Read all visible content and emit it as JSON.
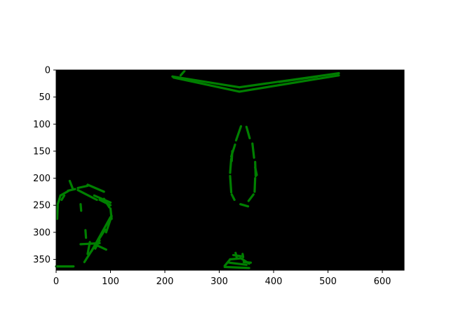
{
  "chart_data": {
    "type": "image",
    "title": "",
    "xlabel": "",
    "ylabel": "",
    "xlim": [
      0,
      640
    ],
    "ylim": [
      370,
      0
    ],
    "y_inverted": true,
    "background_color": "#000000",
    "line_color": "#007f00",
    "grid": false,
    "legend": "none",
    "x_ticks": [
      {
        "value": 0,
        "label": "0"
      },
      {
        "value": 100,
        "label": "100"
      },
      {
        "value": 200,
        "label": "200"
      },
      {
        "value": 300,
        "label": "300"
      },
      {
        "value": 400,
        "label": "400"
      },
      {
        "value": 500,
        "label": "500"
      },
      {
        "value": 600,
        "label": "600"
      }
    ],
    "y_ticks": [
      {
        "value": 0,
        "label": "0"
      },
      {
        "value": 50,
        "label": "50"
      },
      {
        "value": 100,
        "label": "100"
      },
      {
        "value": 150,
        "label": "150"
      },
      {
        "value": 200,
        "label": "200"
      },
      {
        "value": 250,
        "label": "250"
      },
      {
        "value": 300,
        "label": "300"
      },
      {
        "value": 350,
        "label": "350"
      }
    ],
    "segments": [
      {
        "id": "top-v-upper-left",
        "points": [
          [
            214,
            12
          ],
          [
            337,
            32
          ]
        ]
      },
      {
        "id": "top-v-lower-left",
        "points": [
          [
            216,
            14
          ],
          [
            337,
            40
          ]
        ]
      },
      {
        "id": "top-v-upper-right",
        "points": [
          [
            337,
            32
          ],
          [
            520,
            6
          ]
        ]
      },
      {
        "id": "top-v-lower-right",
        "points": [
          [
            337,
            40
          ],
          [
            520,
            10
          ]
        ]
      },
      {
        "id": "top-v-upper-right-segment",
        "points": [
          [
            410,
            22
          ],
          [
            480,
            12
          ]
        ]
      },
      {
        "id": "top-v-tick",
        "points": [
          [
            229,
            10
          ],
          [
            236,
            2
          ]
        ]
      },
      {
        "id": "oval-1",
        "points": [
          [
            340,
            104
          ],
          [
            331,
            130
          ]
        ]
      },
      {
        "id": "oval-2",
        "points": [
          [
            329,
            138
          ],
          [
            322,
            160
          ]
        ]
      },
      {
        "id": "oval-3",
        "points": [
          [
            322,
            164
          ],
          [
            320,
            190
          ]
        ]
      },
      {
        "id": "oval-4",
        "points": [
          [
            320,
            196
          ],
          [
            322,
            226
          ]
        ]
      },
      {
        "id": "oval-5",
        "points": [
          [
            323,
            230
          ],
          [
            328,
            240
          ]
        ]
      },
      {
        "id": "oval-6",
        "points": [
          [
            339,
            248
          ],
          [
            353,
            252
          ]
        ]
      },
      {
        "id": "oval-7",
        "points": [
          [
            354,
            242
          ],
          [
            363,
            230
          ]
        ]
      },
      {
        "id": "oval-8",
        "points": [
          [
            365,
            225
          ],
          [
            366,
            200
          ]
        ]
      },
      {
        "id": "oval-9",
        "points": [
          [
            367,
            196
          ],
          [
            366,
            170
          ]
        ]
      },
      {
        "id": "oval-10",
        "points": [
          [
            364,
            162
          ],
          [
            361,
            136
          ]
        ]
      },
      {
        "id": "oval-11",
        "points": [
          [
            356,
            126
          ],
          [
            350,
            105
          ]
        ]
      },
      {
        "id": "oval-12",
        "points": [
          [
            324,
            150
          ],
          [
            323,
            168
          ]
        ]
      },
      {
        "id": "oval-13",
        "points": [
          [
            366,
            180
          ],
          [
            369,
            194
          ]
        ]
      },
      {
        "id": "blob-1",
        "points": [
          [
            310,
            362
          ],
          [
            320,
            350
          ]
        ]
      },
      {
        "id": "blob-2",
        "points": [
          [
            320,
            350
          ],
          [
            340,
            348
          ]
        ]
      },
      {
        "id": "blob-3",
        "points": [
          [
            340,
            348
          ],
          [
            355,
            358
          ]
        ]
      },
      {
        "id": "blob-4",
        "points": [
          [
            310,
            364
          ],
          [
            355,
            366
          ]
        ]
      },
      {
        "id": "blob-5",
        "points": [
          [
            318,
            356
          ],
          [
            350,
            360
          ]
        ]
      },
      {
        "id": "blob-6",
        "points": [
          [
            326,
            342
          ],
          [
            340,
            344
          ]
        ]
      },
      {
        "id": "blob-7",
        "points": [
          [
            343,
            340
          ],
          [
            344,
            346
          ]
        ]
      },
      {
        "id": "blob-8",
        "points": [
          [
            330,
            338
          ],
          [
            332,
            346
          ]
        ]
      },
      {
        "id": "blob-9",
        "points": [
          [
            345,
            355
          ],
          [
            358,
            356
          ]
        ]
      },
      {
        "id": "hook-1",
        "points": [
          [
            2,
            275
          ],
          [
            3,
            250
          ]
        ]
      },
      {
        "id": "hook-2",
        "points": [
          [
            3,
            248
          ],
          [
            8,
            232
          ]
        ]
      },
      {
        "id": "hook-3",
        "points": [
          [
            8,
            232
          ],
          [
            22,
            224
          ]
        ]
      },
      {
        "id": "hook-4",
        "points": [
          [
            10,
            240
          ],
          [
            15,
            232
          ]
        ]
      },
      {
        "id": "hook-5",
        "points": [
          [
            22,
            223
          ],
          [
            35,
            220
          ]
        ]
      },
      {
        "id": "hook-6",
        "points": [
          [
            25,
            205
          ],
          [
            30,
            218
          ]
        ]
      },
      {
        "id": "hook-7",
        "points": [
          [
            40,
            218
          ],
          [
            58,
            214
          ]
        ]
      },
      {
        "id": "hook-8",
        "points": [
          [
            58,
            212
          ],
          [
            88,
            225
          ]
        ]
      },
      {
        "id": "hook-9",
        "points": [
          [
            40,
            222
          ],
          [
            75,
            240
          ]
        ]
      },
      {
        "id": "hook-10",
        "points": [
          [
            70,
            232
          ],
          [
            100,
            245
          ]
        ]
      },
      {
        "id": "hook-11",
        "points": [
          [
            88,
            238
          ],
          [
            98,
            254
          ]
        ]
      },
      {
        "id": "hook-12",
        "points": [
          [
            100,
            256
          ],
          [
            102,
            275
          ]
        ]
      },
      {
        "id": "hook-13",
        "points": [
          [
            102,
            270
          ],
          [
            92,
            300
          ]
        ]
      },
      {
        "id": "hook-14",
        "points": [
          [
            100,
            272
          ],
          [
            65,
            335
          ]
        ]
      },
      {
        "id": "hook-15",
        "points": [
          [
            90,
            295
          ],
          [
            52,
            355
          ]
        ]
      },
      {
        "id": "hook-16",
        "points": [
          [
            80,
            315
          ],
          [
            72,
            330
          ]
        ]
      },
      {
        "id": "hook-17",
        "points": [
          [
            45,
            322
          ],
          [
            80,
            320
          ]
        ]
      },
      {
        "id": "hook-18",
        "points": [
          [
            75,
            324
          ],
          [
            92,
            332
          ]
        ]
      },
      {
        "id": "hook-19",
        "points": [
          [
            58,
            340
          ],
          [
            62,
            318
          ]
        ]
      },
      {
        "id": "hook-20",
        "points": [
          [
            54,
            296
          ],
          [
            55,
            310
          ]
        ]
      },
      {
        "id": "hook-21",
        "points": [
          [
            45,
            248
          ],
          [
            46,
            260
          ]
        ]
      },
      {
        "id": "hook-22",
        "points": [
          [
            80,
            240
          ],
          [
            100,
            250
          ]
        ]
      },
      {
        "id": "bottom-dash",
        "points": [
          [
            0,
            363
          ],
          [
            32,
            363
          ]
        ]
      }
    ]
  }
}
